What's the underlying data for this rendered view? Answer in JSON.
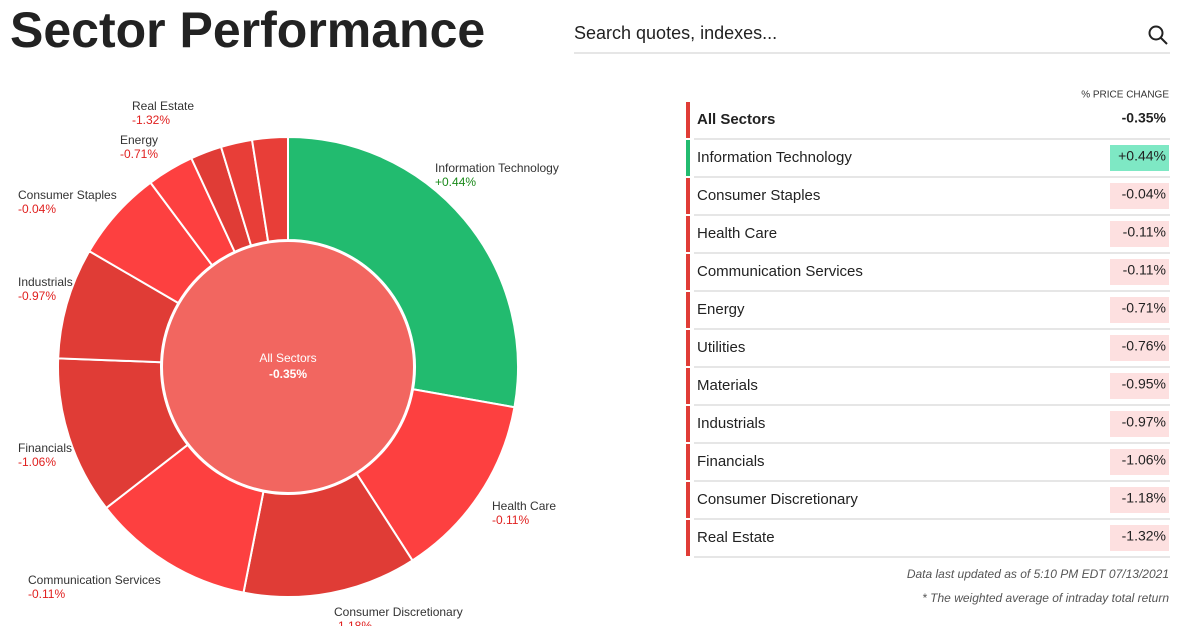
{
  "header": {
    "title": "Sector Performance",
    "search_placeholder": "Search quotes, indexes..."
  },
  "chart_data": {
    "type": "donut",
    "center": {
      "name": "All Sectors",
      "change": "-0.35%",
      "color": "#f26660"
    },
    "categories": [
      "Information Technology",
      "Health Care",
      "Consumer Discretionary",
      "Communication Services",
      "Financials",
      "Industrials",
      "Consumer Staples",
      "Materials",
      "Energy",
      "Utilities",
      "Real Estate"
    ],
    "values": [
      27.8,
      13.1,
      12.2,
      11.4,
      11.1,
      7.8,
      6.4,
      3.3,
      2.2,
      2.2,
      2.5
    ],
    "changes": [
      "+0.44%",
      "-0.11%",
      "-1.18%",
      "-0.11%",
      "-1.06%",
      "-0.97%",
      "-0.04%",
      "-0.95%",
      "-0.71%",
      "-0.76%",
      "-1.32%"
    ],
    "colors": [
      "#22bb6f",
      "#fd4040",
      "#e03c36",
      "#fd4040",
      "#e03c36",
      "#e03c36",
      "#fd4040",
      "#fd4040",
      "#e03c36",
      "#e83e38",
      "#e83e38"
    ]
  },
  "table": {
    "header": "% PRICE CHANGE",
    "rows": [
      [
        "All Sectors",
        "-0.35%"
      ],
      [
        "Information Technology",
        "+0.44%"
      ],
      [
        "Consumer Staples",
        "-0.04%"
      ],
      [
        "Health Care",
        "-0.11%"
      ],
      [
        "Communication Services",
        "-0.11%"
      ],
      [
        "Energy",
        "-0.71%"
      ],
      [
        "Utilities",
        "-0.76%"
      ],
      [
        "Materials",
        "-0.95%"
      ],
      [
        "Industrials",
        "-0.97%"
      ],
      [
        "Financials",
        "-1.06%"
      ],
      [
        "Consumer Discretionary",
        "-1.18%"
      ],
      [
        "Real Estate",
        "-1.32%"
      ]
    ]
  },
  "footnotes": [
    "Data last updated as of 5:10 PM EDT 07/13/2021",
    "* The weighted average of intraday total return"
  ]
}
